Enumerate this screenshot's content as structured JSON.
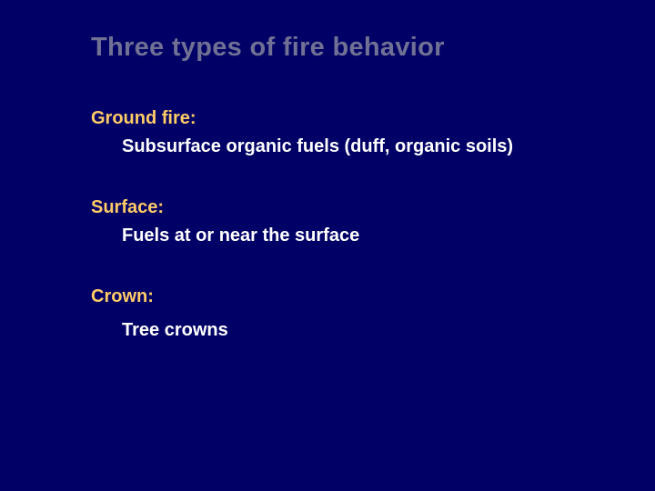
{
  "slide": {
    "title": "Three types of fire behavior",
    "sections": [
      {
        "header": "Ground fire:",
        "body": "Subsurface organic fuels (duff, organic soils)"
      },
      {
        "header": "Surface:",
        "body": "Fuels at or near the surface"
      },
      {
        "header": "Crown:",
        "body": "Tree crowns"
      }
    ],
    "colors": {
      "background": "#000066",
      "title": "#707194",
      "header": "#ffcc66",
      "body": "#ffffff"
    },
    "typography": {
      "title_fontsize": 29,
      "section_fontsize": 20,
      "font_family": "Arial",
      "font_weight": "bold"
    }
  }
}
